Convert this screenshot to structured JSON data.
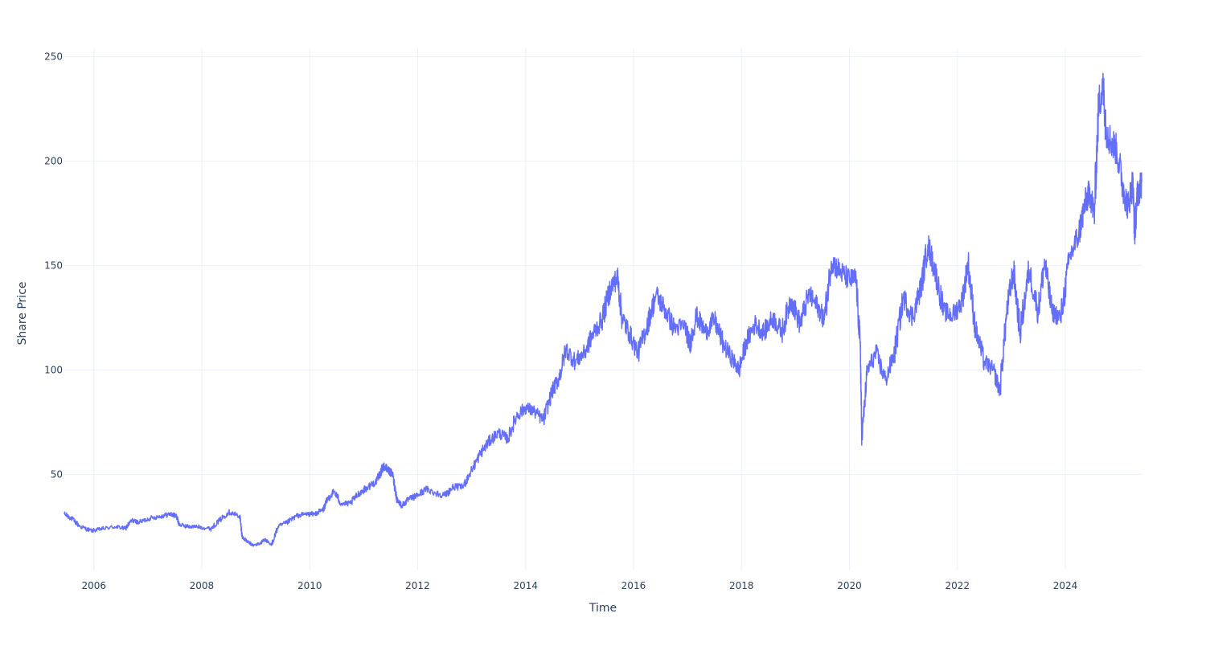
{
  "chart_data": {
    "type": "line",
    "title": "",
    "xlabel": "Time",
    "ylabel": "Share Price",
    "x_ticks": [
      "2006",
      "2008",
      "2010",
      "2012",
      "2014",
      "2016",
      "2018",
      "2020",
      "2022",
      "2024"
    ],
    "y_ticks": [
      50,
      100,
      150,
      200,
      250
    ],
    "xlim": [
      "2005-06-15",
      "2025-06-01"
    ],
    "ylim": [
      4,
      254
    ],
    "grid": true,
    "legend": "none",
    "colors": {
      "line": "#636efa",
      "grid": "#ebf0f8",
      "text": "#2a3f5f"
    },
    "series": [
      {
        "x": [
          "2005-06-15",
          "2005-08-01",
          "2005-10-01",
          "2005-12-15",
          "2006-03-01",
          "2006-06-01",
          "2006-08-01",
          "2006-09-15",
          "2006-11-01",
          "2007-01-15",
          "2007-04-01",
          "2007-06-01",
          "2007-07-15",
          "2007-08-01",
          "2007-10-01",
          "2007-12-01",
          "2008-03-01",
          "2008-05-01",
          "2008-07-01",
          "2008-09-15",
          "2008-10-01",
          "2008-11-01",
          "2008-12-15",
          "2009-02-01",
          "2009-03-01",
          "2009-04-15",
          "2009-06-01",
          "2009-08-01",
          "2009-10-01",
          "2009-12-01",
          "2010-02-01",
          "2010-04-01",
          "2010-05-01",
          "2010-06-15",
          "2010-08-01",
          "2010-10-01",
          "2010-12-01",
          "2011-02-01",
          "2011-04-01",
          "2011-05-15",
          "2011-06-15",
          "2011-07-15",
          "2011-08-15",
          "2011-09-15",
          "2011-11-01",
          "2012-01-01",
          "2012-03-01",
          "2012-05-01",
          "2012-07-01",
          "2012-09-01",
          "2012-11-01",
          "2013-01-01",
          "2013-03-01",
          "2013-05-01",
          "2013-07-01",
          "2013-09-01",
          "2013-11-01",
          "2014-01-01",
          "2014-03-01",
          "2014-05-01",
          "2014-07-01",
          "2014-08-15",
          "2014-10-01",
          "2014-12-01",
          "2015-02-01",
          "2015-04-01",
          "2015-06-01",
          "2015-08-01",
          "2015-09-15",
          "2015-10-15",
          "2015-12-01",
          "2016-02-01",
          "2016-04-01",
          "2016-06-01",
          "2016-08-01",
          "2016-10-01",
          "2016-12-15",
          "2017-01-15",
          "2017-03-01",
          "2017-05-01",
          "2017-07-01",
          "2017-09-01",
          "2017-11-01",
          "2017-12-15",
          "2018-02-01",
          "2018-04-01",
          "2018-06-01",
          "2018-08-01",
          "2018-10-01",
          "2018-12-01",
          "2019-02-01",
          "2019-04-01",
          "2019-06-01",
          "2019-07-15",
          "2019-09-01",
          "2019-11-01",
          "2020-01-01",
          "2020-02-15",
          "2020-03-15",
          "2020-03-25",
          "2020-05-01",
          "2020-07-01",
          "2020-09-01",
          "2020-11-01",
          "2021-01-01",
          "2021-03-01",
          "2021-05-01",
          "2021-06-15",
          "2021-08-01",
          "2021-10-01",
          "2021-12-01",
          "2022-02-01",
          "2022-03-15",
          "2022-05-01",
          "2022-07-01",
          "2022-09-01",
          "2022-10-15",
          "2022-12-01",
          "2023-01-15",
          "2023-03-01",
          "2023-05-01",
          "2023-07-01",
          "2023-08-15",
          "2023-10-01",
          "2023-12-01",
          "2024-02-01",
          "2024-04-01",
          "2024-05-15",
          "2024-06-15",
          "2024-07-15",
          "2024-08-15",
          "2024-09-15",
          "2024-10-01",
          "2024-11-01",
          "2024-12-15",
          "2025-02-01",
          "2025-03-01",
          "2025-04-01",
          "2025-04-15",
          "2025-05-01",
          "2025-06-01"
        ],
        "y": [
          31,
          29,
          25,
          23,
          24,
          25,
          24,
          28,
          27,
          29,
          30,
          31,
          30,
          26,
          25,
          25,
          24,
          28,
          32,
          30,
          20,
          18,
          16,
          17,
          19,
          16,
          25,
          27,
          30,
          31,
          31,
          33,
          38,
          42,
          36,
          36,
          41,
          44,
          47,
          54,
          52,
          50,
          38,
          35,
          38,
          40,
          43,
          41,
          40,
          44,
          44,
          52,
          60,
          66,
          70,
          67,
          78,
          82,
          80,
          76,
          90,
          96,
          110,
          104,
          108,
          117,
          124,
          140,
          144,
          125,
          118,
          108,
          121,
          136,
          129,
          120,
          121,
          112,
          126,
          118,
          124,
          112,
          105,
          100,
          113,
          122,
          118,
          125,
          118,
          134,
          122,
          136,
          130,
          124,
          152,
          147,
          143,
          144,
          110,
          67,
          100,
          108,
          95,
          108,
          135,
          125,
          140,
          160,
          148,
          128,
          126,
          133,
          151,
          120,
          104,
          100,
          90,
          128,
          148,
          118,
          148,
          128,
          152,
          128,
          125,
          154,
          165,
          180,
          185,
          175,
          228,
          235,
          215,
          210,
          205,
          185,
          178,
          190,
          165,
          183,
          190
        ]
      }
    ]
  }
}
